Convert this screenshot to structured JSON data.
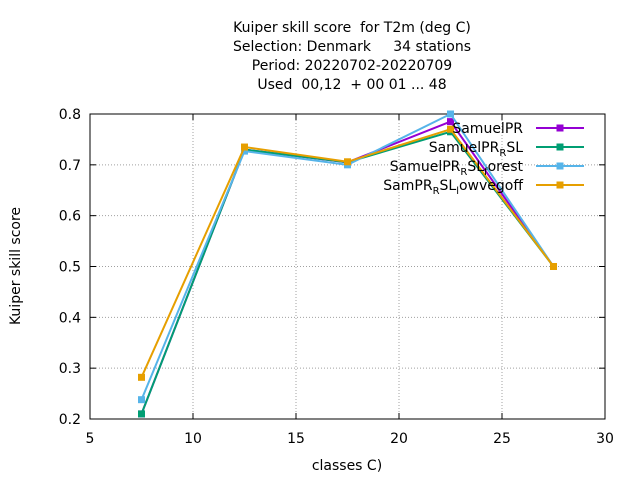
{
  "chart_data": {
    "type": "line",
    "title_lines": [
      "Kuiper skill score  for T2m (deg C)",
      "Selection: Denmark     34 stations",
      "Period: 20220702-20220709",
      "Used  00,12  + 00 01 ... 48"
    ],
    "xlabel": "classes C)",
    "ylabel": "Kuiper skill score",
    "xlim": [
      5,
      30
    ],
    "ylim": [
      0.2,
      0.8
    ],
    "xticks": [
      5,
      10,
      15,
      20,
      25,
      30
    ],
    "yticks": [
      0.2,
      0.3,
      0.4,
      0.5,
      0.6,
      0.7,
      0.8
    ],
    "grid": true,
    "legend_position": "top-right",
    "x": [
      7.5,
      12.5,
      17.5,
      22.5,
      27.5
    ],
    "series": [
      {
        "name_main": "SamuelPR",
        "name_sub": "",
        "name_tail": "",
        "name_sub2": "",
        "name_tail2": "",
        "color": "#9400d3",
        "values": [
          0.21,
          0.73,
          0.705,
          0.785,
          0.5
        ]
      },
      {
        "name_main": "SamuelPR",
        "name_sub": "R",
        "name_tail": "SL",
        "name_sub2": "",
        "name_tail2": "",
        "color": "#009e73",
        "values": [
          0.21,
          0.73,
          0.705,
          0.765,
          0.5
        ]
      },
      {
        "name_main": "SamuelPR",
        "name_sub": "R",
        "name_tail": "SL",
        "name_sub2": "f",
        "name_tail2": "orest",
        "color": "#56b4e9",
        "values": [
          0.238,
          0.727,
          0.7,
          0.8,
          0.5
        ]
      },
      {
        "name_main": "SamPR",
        "name_sub": "R",
        "name_tail": "SL",
        "name_sub2": "l",
        "name_tail2": "owvegoff",
        "color": "#e69f00",
        "values": [
          0.282,
          0.735,
          0.706,
          0.77,
          0.5
        ]
      }
    ]
  }
}
